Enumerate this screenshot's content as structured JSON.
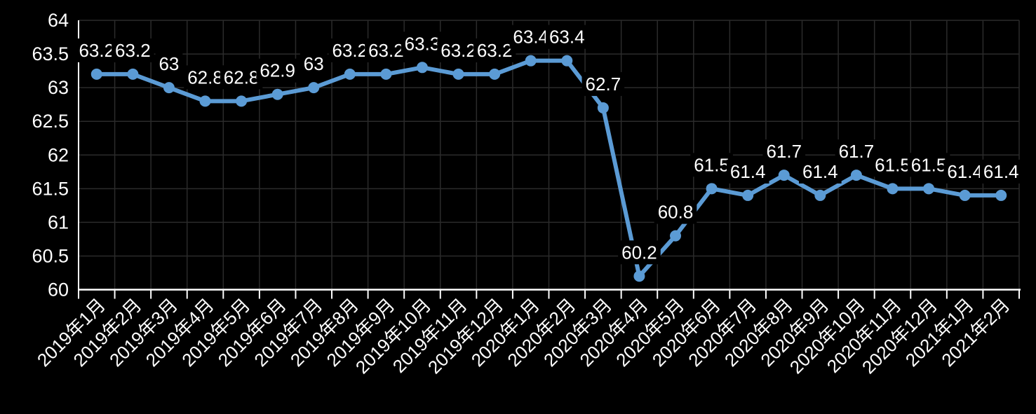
{
  "chart_data": {
    "type": "line",
    "title": "",
    "xlabel": "",
    "ylabel": "",
    "legend": "none",
    "grid": true,
    "ylim": [
      60,
      64
    ],
    "y_tick_step": 0.5,
    "y_tick_labels": [
      "64",
      "63.5",
      "63",
      "62.5",
      "62",
      "61.5",
      "61",
      "60.5",
      "60"
    ],
    "categories": [
      "2019年1月",
      "2019年2月",
      "2019年3月",
      "2019年4月",
      "2019年5月",
      "2019年6月",
      "2019年7月",
      "2019年8月",
      "2019年9月",
      "2019年10月",
      "2019年11月",
      "2019年12月",
      "2020年1月",
      "2020年2月",
      "2020年3月",
      "2020年4月",
      "2020年5月",
      "2020年6月",
      "2020年7月",
      "2020年8月",
      "2020年9月",
      "2020年10月",
      "2020年11月",
      "2020年12月",
      "2021年1月",
      "2021年2月"
    ],
    "series": [
      {
        "name": "",
        "values": [
          63.2,
          63.2,
          63,
          62.8,
          62.8,
          62.9,
          63,
          63.2,
          63.2,
          63.3,
          63.2,
          63.2,
          63.4,
          63.4,
          62.7,
          60.2,
          60.8,
          61.5,
          61.4,
          61.7,
          61.4,
          61.7,
          61.5,
          61.5,
          61.4,
          61.4
        ],
        "data_labels": [
          "63.2",
          "63.2",
          "63",
          "62.8",
          "62.8",
          "62.9",
          "63",
          "63.2",
          "63.2",
          "63.3",
          "63.2",
          "63.2",
          "63.4",
          "63.4",
          "62.7",
          "60.2",
          "60.8",
          "61.5",
          "61.4",
          "61.7",
          "61.4",
          "61.7",
          "61.5",
          "61.5",
          "61.4",
          "61.4"
        ]
      }
    ],
    "colors": {
      "background": "#000000",
      "line": "#5B9BD5",
      "marker": "#5B9BD5",
      "gridline": "#2B2B2B",
      "axis": "#FFFFFF",
      "text": "#FFFFFF",
      "data_label_text": "#FFFFFF",
      "data_label_bg": "#000000"
    }
  }
}
